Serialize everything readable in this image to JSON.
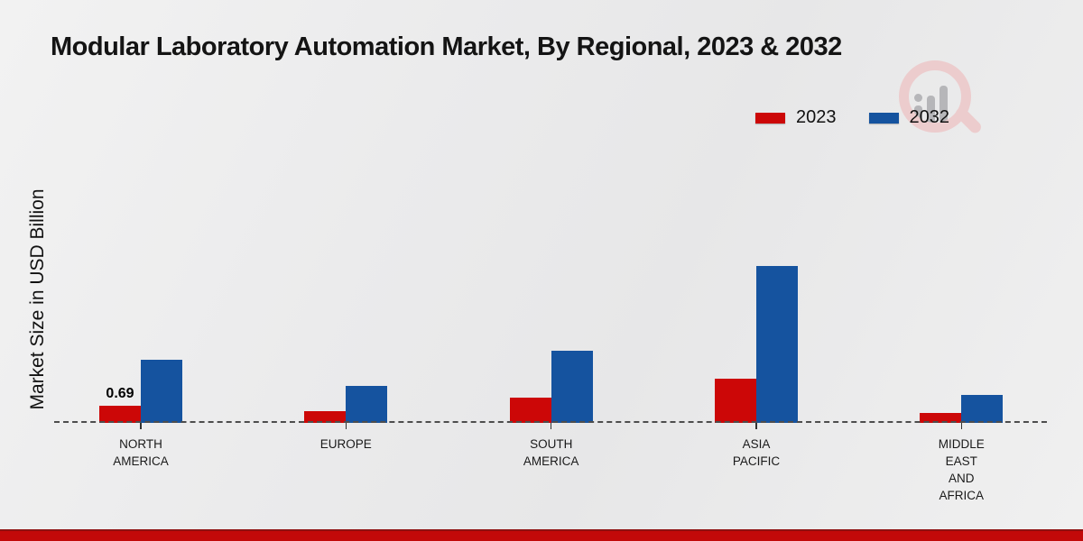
{
  "title": "Modular Laboratory Automation Market, By Regional, 2023 & 2032",
  "y_axis_label": "Market Size in USD Billion",
  "legend": [
    {
      "label": "2023",
      "color": "#cc0707"
    },
    {
      "label": "2032",
      "color": "#15539f"
    }
  ],
  "colors": {
    "series_2023": "#cc0707",
    "series_2032": "#15539f",
    "baseline": "#4d4d4d",
    "footer_bar": "#c20909",
    "footer_border": "#8e1010",
    "watermark_pink": "#eccccd",
    "watermark_gray": "#b6b6b9"
  },
  "logo_icon": "magnifier-bar-chart-logo",
  "chart_data": {
    "type": "bar",
    "title": "Modular Laboratory Automation Market, By Regional, 2023 & 2032",
    "xlabel": "",
    "ylabel": "Market Size in USD Billion",
    "unit": "USD Billion",
    "grid": false,
    "legend_position": "top-right",
    "baseline_style": "dashed",
    "categories": [
      "NORTH AMERICA",
      "EUROPE",
      "SOUTH AMERICA",
      "ASIA PACIFIC",
      "MIDDLE EAST AND AFRICA"
    ],
    "category_lines": [
      [
        "NORTH",
        "AMERICA"
      ],
      [
        "EUROPE"
      ],
      [
        "SOUTH",
        "AMERICA"
      ],
      [
        "ASIA",
        "PACIFIC"
      ],
      [
        "MIDDLE",
        "EAST",
        "AND",
        "AFRICA"
      ]
    ],
    "series": [
      {
        "name": "2023",
        "color": "#cc0707",
        "values": [
          0.69,
          0.47,
          1.02,
          1.78,
          0.4
        ]
      },
      {
        "name": "2032",
        "color": "#15539f",
        "values": [
          2.54,
          1.5,
          2.91,
          6.33,
          1.13
        ]
      }
    ],
    "bar_labels": [
      [
        "0.69",
        "",
        "",
        "",
        ""
      ],
      [
        "",
        "",
        "",
        "",
        ""
      ]
    ],
    "ylim": [
      0,
      7
    ]
  }
}
